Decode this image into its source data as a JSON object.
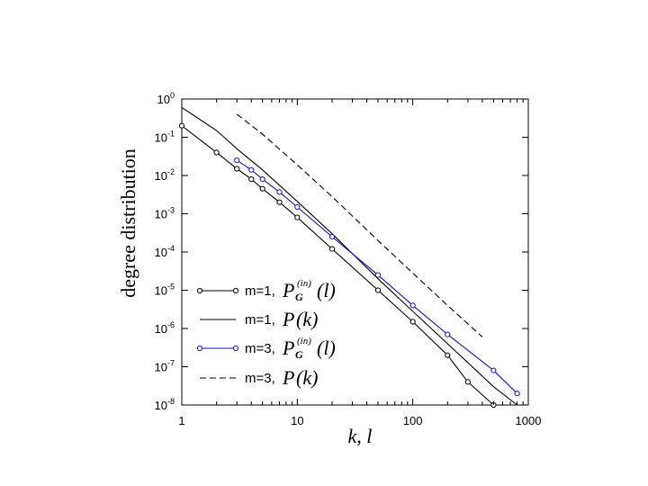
{
  "chart_data": {
    "type": "line",
    "title": "",
    "xlabel": "k, l",
    "ylabel": "degree distribution",
    "xscale": "log",
    "yscale": "log",
    "xlim": [
      1,
      1000
    ],
    "ylim": [
      1e-08,
      1
    ],
    "grid": false,
    "legend_position": "bottom-left",
    "x_ticks": [
      {
        "value": 1,
        "label": "1"
      },
      {
        "value": 10,
        "label": "10"
      },
      {
        "value": 100,
        "label": "100"
      },
      {
        "value": 1000,
        "label": "1000"
      }
    ],
    "y_ticks": [
      {
        "value": 1,
        "base": "10",
        "exp": "0"
      },
      {
        "value": 0.1,
        "base": "10",
        "exp": "-1"
      },
      {
        "value": 0.01,
        "base": "10",
        "exp": "-2"
      },
      {
        "value": 0.001,
        "base": "10",
        "exp": "-3"
      },
      {
        "value": 0.0001,
        "base": "10",
        "exp": "-4"
      },
      {
        "value": 1e-05,
        "base": "10",
        "exp": "-5"
      },
      {
        "value": 1e-06,
        "base": "10",
        "exp": "-6"
      },
      {
        "value": 1e-07,
        "base": "10",
        "exp": "-7"
      },
      {
        "value": 1e-08,
        "base": "10",
        "exp": "-8"
      }
    ],
    "series": [
      {
        "style": "line-circles",
        "color": "#000000",
        "legend": {
          "m": "m=1,",
          "func": "P",
          "sub": "G",
          "sup": "(in)",
          "arg": "(l)"
        },
        "x": [
          1,
          2,
          3,
          4,
          5,
          7,
          10,
          20,
          50,
          100,
          200,
          300,
          500
        ],
        "y": [
          0.2,
          0.04,
          0.015,
          0.008,
          0.0045,
          0.002,
          0.0008,
          0.00012,
          1e-05,
          1.5e-06,
          2e-07,
          4e-08,
          1e-08
        ]
      },
      {
        "style": "solid",
        "color": "#000000",
        "legend": {
          "m": "m=1,",
          "func": "P",
          "sub": "",
          "sup": "",
          "arg": "(k)"
        },
        "x": [
          1,
          2,
          3,
          5,
          10,
          20,
          50,
          100,
          200,
          500,
          800
        ],
        "y": [
          0.6,
          0.15,
          0.05,
          0.014,
          0.0021,
          0.0003,
          2e-05,
          2.8e-06,
          4e-07,
          3e-08,
          1e-08
        ]
      },
      {
        "style": "line-circles",
        "color": "#1515c0",
        "legend": {
          "m": "m=3,",
          "func": "P",
          "sub": "G",
          "sup": "(in)",
          "arg": "(l)"
        },
        "x": [
          3,
          4,
          5,
          7,
          10,
          20,
          50,
          100,
          200,
          500,
          800
        ],
        "y": [
          0.025,
          0.014,
          0.008,
          0.0037,
          0.0015,
          0.00025,
          2.5e-05,
          4e-06,
          7e-07,
          8e-08,
          2e-08
        ]
      },
      {
        "style": "dashed",
        "color": "#000000",
        "legend": {
          "m": "m=3,",
          "func": "P",
          "sub": "",
          "sup": "",
          "arg": "(k)"
        },
        "x": [
          3,
          5,
          10,
          20,
          50,
          100,
          200,
          400
        ],
        "y": [
          0.4,
          0.12,
          0.019,
          0.0028,
          0.0002,
          2.8e-05,
          4e-06,
          6e-07
        ]
      }
    ]
  }
}
